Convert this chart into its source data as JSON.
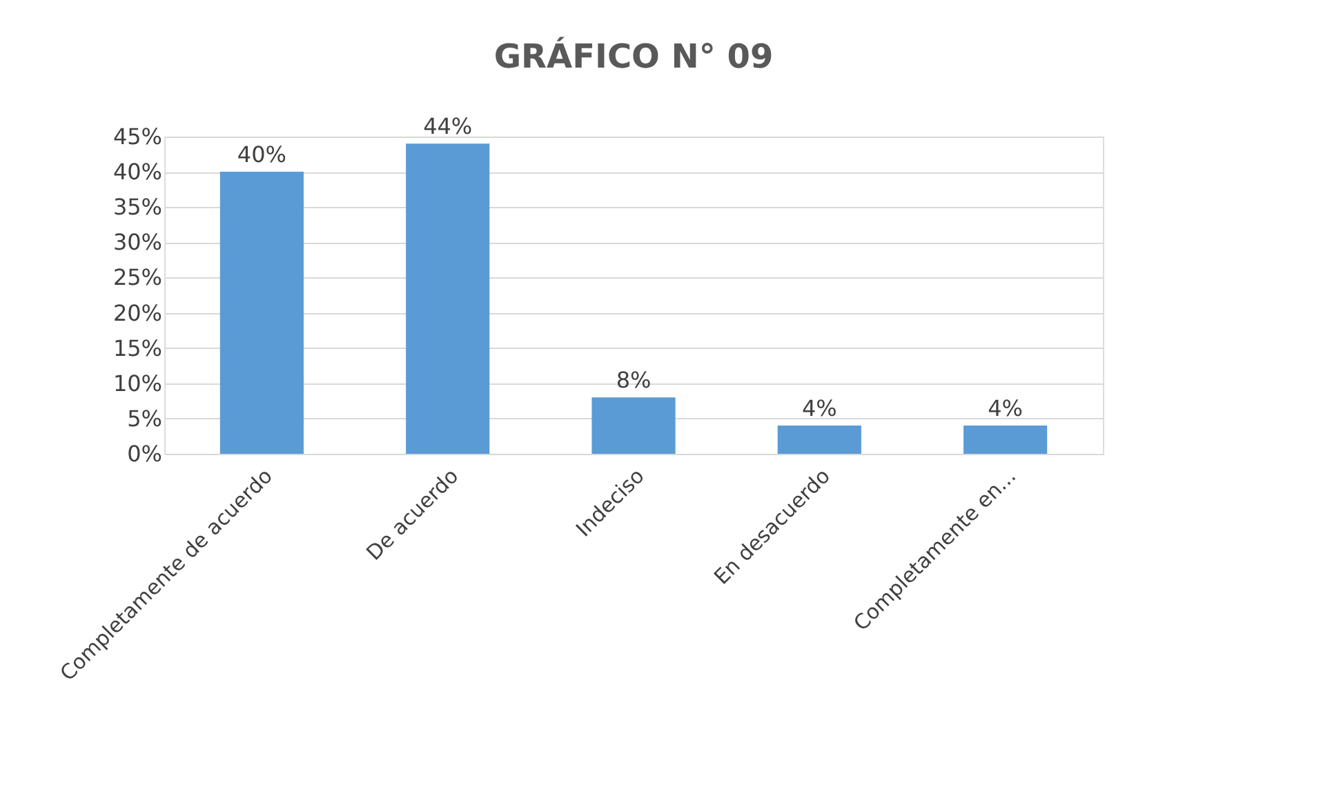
{
  "chart_data": {
    "type": "bar",
    "title": "GRÁFICO N° 09",
    "categories": [
      "Completamente de acuerdo",
      "De acuerdo",
      "Indeciso",
      "En desacuerdo",
      "Completamente en..."
    ],
    "values": [
      40,
      44,
      8,
      4,
      4
    ],
    "value_labels": [
      "40%",
      "44%",
      "8%",
      "4%",
      "4%"
    ],
    "color": "#5b9bd5",
    "ylim": [
      0,
      45
    ],
    "yticks": [
      {
        "value": 0,
        "label": "0%"
      },
      {
        "value": 5,
        "label": "5%"
      },
      {
        "value": 10,
        "label": "10%"
      },
      {
        "value": 15,
        "label": "15%"
      },
      {
        "value": 20,
        "label": "20%"
      },
      {
        "value": 25,
        "label": "25%"
      },
      {
        "value": 30,
        "label": "30%"
      },
      {
        "value": 35,
        "label": "35%"
      },
      {
        "value": 40,
        "label": "40%"
      },
      {
        "value": 45,
        "label": "45%"
      }
    ],
    "grid": "y"
  }
}
